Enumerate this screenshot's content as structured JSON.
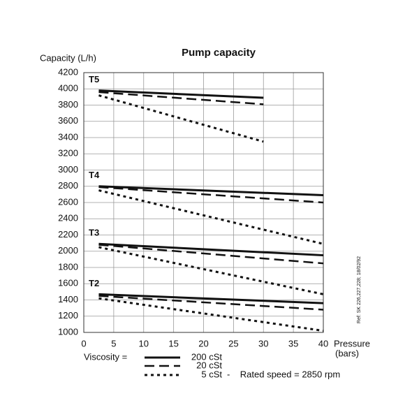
{
  "chart_data": {
    "type": "line",
    "title": "Pump capacity",
    "y_label": "Capacity  (L/h)",
    "x_label": [
      "Pressure",
      "(bars)"
    ],
    "xlim": [
      0,
      40
    ],
    "xticks": [
      0,
      5,
      10,
      15,
      20,
      25,
      30,
      35,
      40
    ],
    "ylim": [
      1000,
      4200
    ],
    "yticks": [
      1000,
      1200,
      1400,
      1600,
      1800,
      2000,
      2200,
      2400,
      2600,
      2800,
      3000,
      3200,
      3400,
      3600,
      3800,
      4000,
      4200
    ],
    "grid": true,
    "color": "#111111",
    "legend_title": "Viscosity  =",
    "legend": [
      {
        "label": "200 cSt",
        "dash": "none",
        "width": 3
      },
      {
        "label": "20 cSt",
        "dash": "14 7",
        "width": 2.5
      },
      {
        "label": "5 cSt",
        "dash": "4 5",
        "width": 3
      }
    ],
    "note": "-    Rated speed = 2850 rpm",
    "reference": "Ref: SK 226,227,228; 18/02/92",
    "series": [
      {
        "name": "T5",
        "x": [
          2.5,
          30
        ],
        "lines": [
          [
            3980,
            3890
          ],
          [
            3960,
            3810
          ],
          [
            3920,
            3350
          ]
        ]
      },
      {
        "name": "T4",
        "x": [
          2.5,
          40
        ],
        "lines": [
          [
            2800,
            2690
          ],
          [
            2790,
            2600
          ],
          [
            2750,
            2090
          ]
        ]
      },
      {
        "name": "T3",
        "x": [
          2.5,
          40
        ],
        "lines": [
          [
            2090,
            1950
          ],
          [
            2080,
            1850
          ],
          [
            2050,
            1470
          ]
        ]
      },
      {
        "name": "T2",
        "x": [
          2.5,
          40
        ],
        "lines": [
          [
            1470,
            1360
          ],
          [
            1450,
            1280
          ],
          [
            1420,
            1020
          ]
        ]
      }
    ]
  }
}
